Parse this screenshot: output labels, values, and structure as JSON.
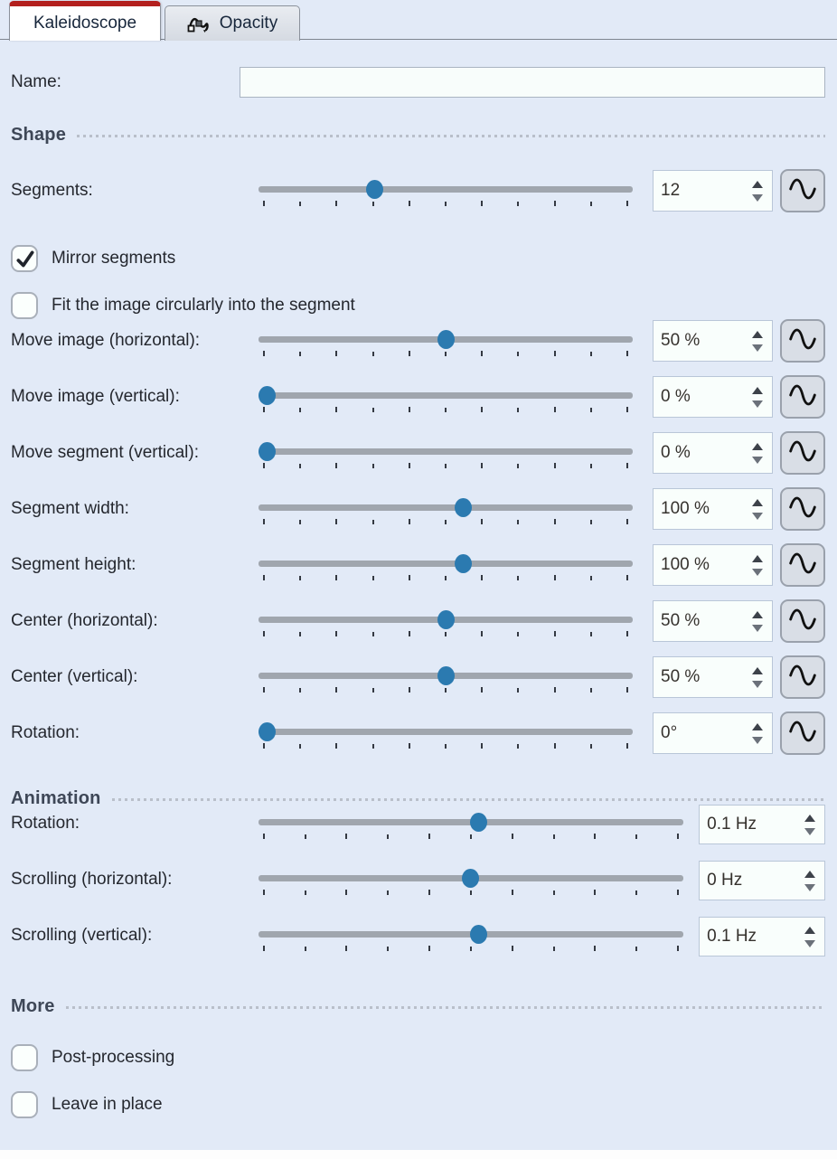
{
  "colors": {
    "accent_red": "#b3201e",
    "handle_blue": "#2b7ab0",
    "pane_background": "#e2eaf7",
    "track_gray": "#a0a6ae"
  },
  "tabs": {
    "kaleidoscope": {
      "label": "Kaleidoscope",
      "active": true
    },
    "opacity": {
      "label": "Opacity",
      "active": false,
      "icon": "opacity-curve-icon"
    }
  },
  "name_row": {
    "label": "Name:",
    "value": "",
    "placeholder": ""
  },
  "shape": {
    "title": "Shape",
    "sliders": [
      {
        "label": "Segments:",
        "value": "12",
        "fraction": 0.3,
        "modulation": true
      },
      {
        "label": "Move image (horizontal):",
        "value": "50 %",
        "fraction": 0.5,
        "modulation": true
      },
      {
        "label": "Move image (vertical):",
        "value": "0 %",
        "fraction": 0,
        "modulation": true
      },
      {
        "label": "Move segment (vertical):",
        "value": "0 %",
        "fraction": 0,
        "modulation": true
      },
      {
        "label": "Segment width:",
        "value": "100 %",
        "fraction": 0.55,
        "modulation": true
      },
      {
        "label": "Segment height:",
        "value": "100 %",
        "fraction": 0.55,
        "modulation": true
      },
      {
        "label": "Center (horizontal):",
        "value": "50 %",
        "fraction": 0.5,
        "modulation": true
      },
      {
        "label": "Center (vertical):",
        "value": "50 %",
        "fraction": 0.5,
        "modulation": true
      },
      {
        "label": "Rotation:",
        "value": "0°",
        "fraction": 0,
        "modulation": true
      }
    ],
    "checkboxes": [
      {
        "label": "Mirror segments",
        "checked": true
      },
      {
        "label": "Fit the image circularly into the segment",
        "checked": false
      }
    ]
  },
  "animation": {
    "title": "Animation",
    "sliders": [
      {
        "label": "Rotation:",
        "value": "0.1 Hz",
        "fraction": 0.52
      },
      {
        "label": "Scrolling (horizontal):",
        "value": "0 Hz",
        "fraction": 0.5
      },
      {
        "label": "Scrolling (vertical):",
        "value": "0.1 Hz",
        "fraction": 0.52
      }
    ]
  },
  "more": {
    "title": "More",
    "checkboxes": [
      {
        "label": "Post-processing",
        "checked": false
      },
      {
        "label": "Leave in place",
        "checked": false
      }
    ]
  }
}
